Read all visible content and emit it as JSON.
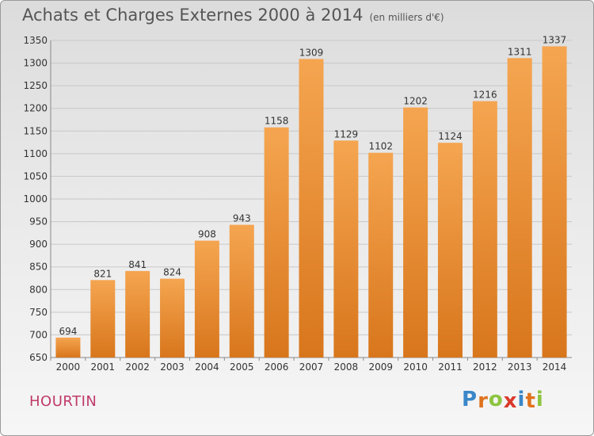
{
  "header": {
    "title": "Achats et Charges Externes 2000 à 2014",
    "subtitle": "(en milliers d'€)"
  },
  "footer": {
    "commune": "HOURTIN",
    "logo_text": "Proxiti",
    "logo_letters": [
      {
        "ch": "P",
        "color": "#3a87c8"
      },
      {
        "ch": "r",
        "color": "#e0731e"
      },
      {
        "ch": "o",
        "color": "#8cc43f"
      },
      {
        "ch": "x",
        "color": "#d93a2b"
      },
      {
        "ch": "i",
        "color": "#3a87c8"
      },
      {
        "ch": "t",
        "color": "#e0731e"
      },
      {
        "ch": "i",
        "color": "#8cc43f"
      }
    ]
  },
  "colors": {
    "bar_top": "#f5a550",
    "bar_bottom": "#d8761c",
    "grid": "#c8c8c8",
    "axis_text": "#333333"
  },
  "chart_data": {
    "type": "bar",
    "categories": [
      "2000",
      "2001",
      "2002",
      "2003",
      "2004",
      "2005",
      "2006",
      "2007",
      "2008",
      "2009",
      "2010",
      "2011",
      "2012",
      "2013",
      "2014"
    ],
    "values": [
      694,
      821,
      841,
      824,
      908,
      943,
      1158,
      1309,
      1129,
      1102,
      1202,
      1124,
      1216,
      1311,
      1337
    ],
    "ylim": [
      650,
      1350
    ],
    "yticks": [
      650,
      700,
      750,
      800,
      850,
      900,
      950,
      1000,
      1050,
      1100,
      1150,
      1200,
      1250,
      1300,
      1350
    ],
    "grid": true,
    "data_labels": true
  }
}
